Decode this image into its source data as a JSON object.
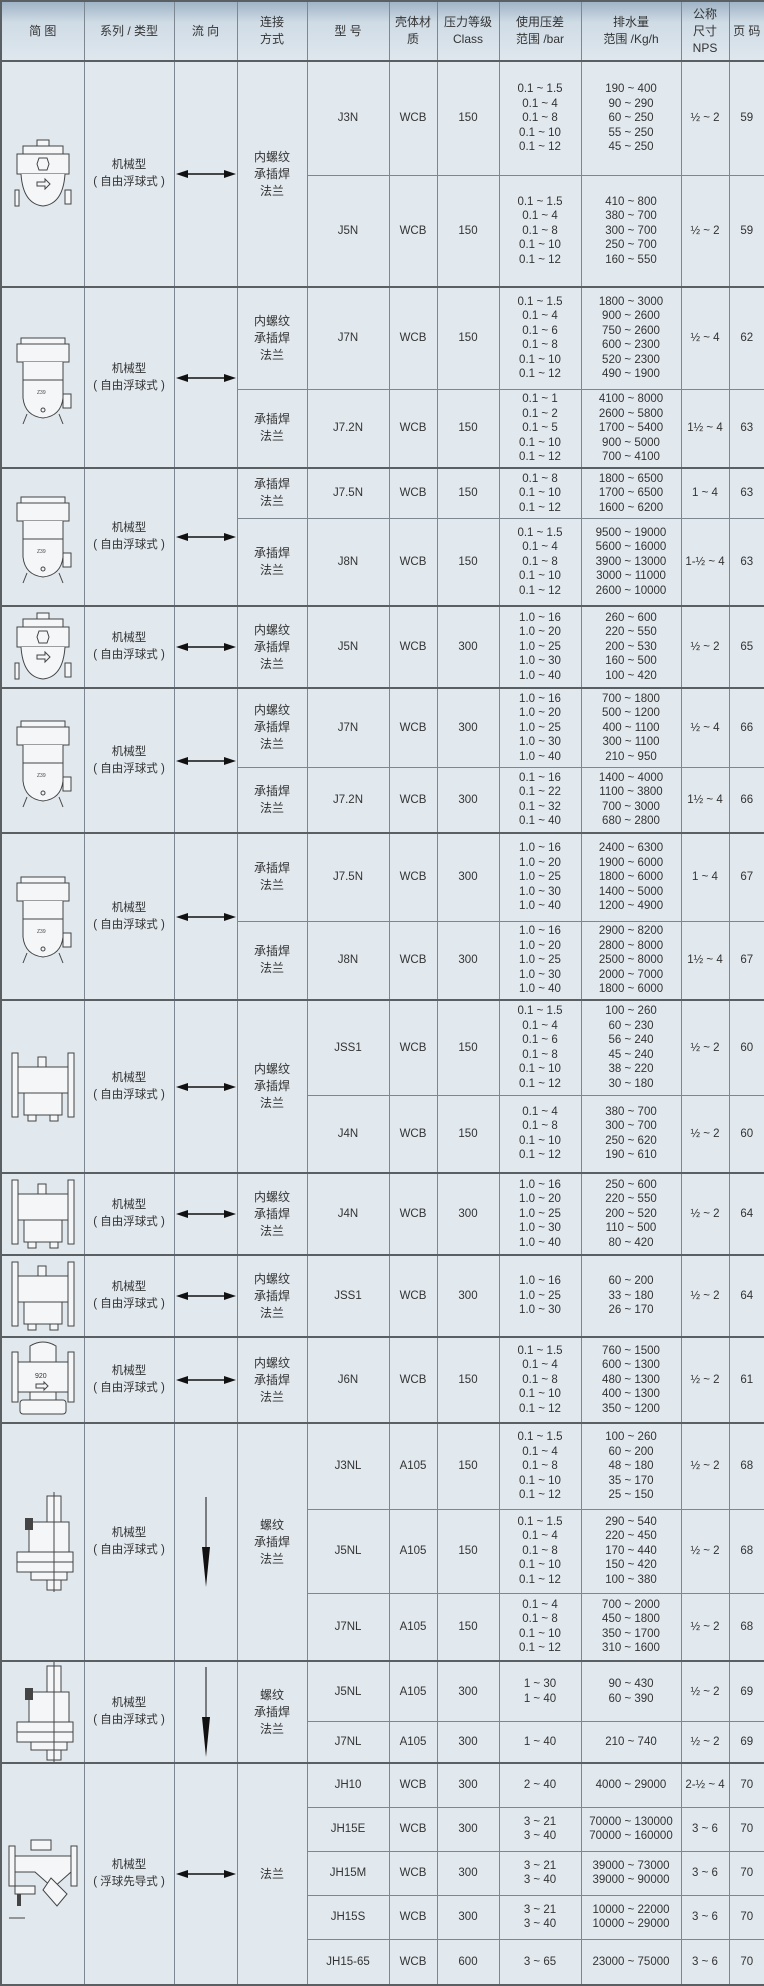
{
  "header": [
    "简 图",
    "系列 / 类型",
    "流 向",
    "连接\n方式",
    "型 号",
    "壳体材\n质",
    "压力等级\nClass",
    "使用压差\n范围 /bar",
    "排水量\n范围 /Kg/h",
    "公称\n尺寸\nNPS",
    "页 码"
  ],
  "colors": {
    "header_top": "#9fb4c6",
    "cell_bg": "#e1e8ee",
    "border": "#5a5f64",
    "text": "#333333"
  },
  "groups": [
    {
      "image": "trap-compact-icon",
      "series": [
        "机械型",
        "( 自由浮球式 )"
      ],
      "flow": "both",
      "connection": "内螺纹\n承插焊\n法兰",
      "rows": [
        {
          "model": "J3N",
          "material": "WCB",
          "class": "150",
          "pressure": [
            "0.1 ~ 1.5",
            "0.1 ~ 4",
            "0.1 ~ 8",
            "0.1 ~ 10",
            "0.1 ~ 12"
          ],
          "capacity": [
            "190 ~ 400",
            "90 ~ 290",
            "60 ~ 250",
            "55 ~ 250",
            "45 ~ 250"
          ],
          "nps": "½ ~ 2",
          "page": "59"
        },
        {
          "model": "J5N",
          "material": "WCB",
          "class": "150",
          "pressure": [
            "0.1 ~ 1.5",
            "0.1 ~ 4",
            "0.1 ~ 8",
            "0.1 ~ 10",
            "0.1 ~ 12"
          ],
          "capacity": [
            "410 ~ 800",
            "380 ~ 700",
            "300 ~ 700",
            "250 ~ 700",
            "160 ~ 550"
          ],
          "nps": "½ ~ 2",
          "page": "59"
        }
      ]
    },
    {
      "image": "trap-tall-icon",
      "series": [
        "机械型",
        "( 自由浮球式 )"
      ],
      "flow": "both",
      "rows": [
        {
          "connection": "内螺纹\n承插焊\n法兰",
          "model": "J7N",
          "material": "WCB",
          "class": "150",
          "pressure": [
            "0.1 ~ 1.5",
            "0.1 ~ 4",
            "0.1 ~ 6",
            "0.1 ~ 8",
            "0.1 ~ 10",
            "0.1 ~ 12"
          ],
          "capacity": [
            "1800 ~ 3000",
            "900 ~ 2600",
            "750 ~ 2600",
            "600 ~ 2300",
            "520 ~ 2300",
            "490 ~ 1900"
          ],
          "nps": "½ ~ 4",
          "page": "62"
        },
        {
          "connection": "承插焊\n法兰",
          "model": "J7.2N",
          "material": "WCB",
          "class": "150",
          "pressure": [
            "0.1 ~ 1",
            "0.1 ~ 2",
            "0.1 ~ 5",
            "0.1 ~ 10",
            "0.1 ~ 12"
          ],
          "capacity": [
            "4100 ~ 8000",
            "2600 ~ 5800",
            "1700 ~ 5400",
            "900 ~ 5000",
            "700 ~ 4100"
          ],
          "nps": "1½ ~ 4",
          "page": "63"
        }
      ]
    },
    {
      "image": "trap-tall-icon",
      "series": [
        "机械型",
        "( 自由浮球式 )"
      ],
      "flow": "both",
      "rows": [
        {
          "connection": "承插焊\n法兰",
          "model": "J7.5N",
          "material": "WCB",
          "class": "150",
          "pressure": [
            "0.1 ~ 8",
            "0.1 ~ 10",
            "0.1 ~ 12"
          ],
          "capacity": [
            "1800 ~ 6500",
            "1700 ~ 6500",
            "1600 ~ 6200"
          ],
          "nps": "1 ~ 4",
          "page": "63"
        },
        {
          "connection": "承插焊\n法兰",
          "model": "J8N",
          "material": "WCB",
          "class": "150",
          "pressure": [
            "0.1 ~ 1.5",
            "0.1 ~ 4",
            "0.1 ~ 8",
            "0.1 ~ 10",
            "0.1 ~ 12"
          ],
          "capacity": [
            "9500 ~ 19000",
            "5600 ~ 16000",
            "3900 ~ 13000",
            "3000 ~ 11000",
            "2600 ~ 10000"
          ],
          "nps": "1-½ ~ 4",
          "page": "63"
        }
      ]
    },
    {
      "image": "trap-compact-icon",
      "series": [
        "机械型",
        "( 自由浮球式 )"
      ],
      "flow": "both",
      "connection": "内螺纹\n承插焊\n法兰",
      "rows": [
        {
          "model": "J5N",
          "material": "WCB",
          "class": "300",
          "pressure": [
            "1.0 ~ 16",
            "1.0 ~ 20",
            "1.0 ~ 25",
            "1.0 ~ 30",
            "1.0 ~ 40"
          ],
          "capacity": [
            "260 ~ 600",
            "220 ~ 550",
            "200 ~ 530",
            "160 ~ 500",
            "100 ~ 420"
          ],
          "nps": "½ ~ 2",
          "page": "65"
        }
      ]
    },
    {
      "image": "trap-tall-icon",
      "series": [
        "机械型",
        "( 自由浮球式 )"
      ],
      "flow": "both",
      "rows": [
        {
          "connection": "内螺纹\n承插焊\n法兰",
          "model": "J7N",
          "material": "WCB",
          "class": "300",
          "pressure": [
            "1.0 ~ 16",
            "1.0 ~ 20",
            "1.0 ~ 25",
            "1.0 ~ 30",
            "1.0 ~ 40"
          ],
          "capacity": [
            "700 ~ 1800",
            "500 ~ 1200",
            "400 ~ 1100",
            "300 ~ 1100",
            "210 ~ 950"
          ],
          "nps": "½ ~ 4",
          "page": "66"
        },
        {
          "connection": "承插焊\n法兰",
          "model": "J7.2N",
          "material": "WCB",
          "class": "300",
          "pressure": [
            "0.1 ~ 16",
            "0.1 ~ 22",
            "0.1 ~ 32",
            "0.1 ~ 40"
          ],
          "capacity": [
            "1400 ~ 4000",
            "1100 ~ 3800",
            "700 ~ 3000",
            "680 ~ 2800"
          ],
          "nps": "1½ ~ 4",
          "page": "66"
        }
      ]
    },
    {
      "image": "trap-tall-icon",
      "series": [
        "机械型",
        "( 自由浮球式 )"
      ],
      "flow": "both",
      "rows": [
        {
          "connection": "承插焊\n法兰",
          "model": "J7.5N",
          "material": "WCB",
          "class": "300",
          "pressure": [
            "1.0 ~ 16",
            "1.0 ~ 20",
            "1.0 ~ 25",
            "1.0 ~ 30",
            "1.0 ~ 40"
          ],
          "capacity": [
            "2400 ~ 6300",
            "1900 ~ 6000",
            "1800 ~ 6000",
            "1400 ~ 5000",
            "1200 ~ 4900"
          ],
          "nps": "1 ~ 4",
          "page": "67"
        },
        {
          "connection": "承插焊\n法兰",
          "model": "J8N",
          "material": "WCB",
          "class": "300",
          "pressure": [
            "1.0 ~ 16",
            "1.0 ~ 20",
            "1.0 ~ 25",
            "1.0 ~ 30",
            "1.0 ~ 40"
          ],
          "capacity": [
            "2900 ~ 8200",
            "2800 ~ 8000",
            "2500 ~ 8000",
            "2000 ~ 7000",
            "1800 ~ 6000"
          ],
          "nps": "1½ ~ 4",
          "page": "67"
        }
      ]
    },
    {
      "image": "trap-flanged-icon",
      "series": [
        "机械型",
        "( 自由浮球式 )"
      ],
      "flow": "both",
      "connection": "内螺纹\n承插焊\n法兰",
      "rows": [
        {
          "model": "JSS1",
          "material": "WCB",
          "class": "150",
          "pressure": [
            "0.1 ~ 1.5",
            "0.1 ~ 4",
            "0.1 ~ 6",
            "0.1 ~ 8",
            "0.1 ~ 10",
            "0.1 ~ 12"
          ],
          "capacity": [
            "100 ~ 260",
            "60 ~ 230",
            "56 ~ 240",
            "45 ~ 240",
            "38 ~ 220",
            "30 ~ 180"
          ],
          "nps": "½ ~ 2",
          "page": "60"
        },
        {
          "model": "J4N",
          "material": "WCB",
          "class": "150",
          "pressure": [
            "0.1 ~ 4",
            "0.1 ~ 8",
            "0.1 ~ 10",
            "0.1 ~ 12"
          ],
          "capacity": [
            "380 ~ 700",
            "300 ~ 700",
            "250 ~ 620",
            "190 ~ 610"
          ],
          "nps": "½ ~ 2",
          "page": "60"
        }
      ]
    },
    {
      "image": "trap-flanged-icon",
      "series": [
        "机械型",
        "( 自由浮球式 )"
      ],
      "flow": "both",
      "connection": "内螺纹\n承插焊\n法兰",
      "rows": [
        {
          "model": "J4N",
          "material": "WCB",
          "class": "300",
          "pressure": [
            "1.0 ~ 16",
            "1.0 ~ 20",
            "1.0 ~ 25",
            "1.0 ~ 30",
            "1.0 ~ 40"
          ],
          "capacity": [
            "250 ~ 600",
            "220 ~ 550",
            "200 ~ 520",
            "110 ~ 500",
            "80 ~ 420"
          ],
          "nps": "½ ~ 2",
          "page": "64"
        }
      ]
    },
    {
      "image": "trap-flanged-icon",
      "series": [
        "机械型",
        "( 自由浮球式 )"
      ],
      "flow": "both",
      "connection": "内螺纹\n承插焊\n法兰",
      "rows": [
        {
          "model": "JSS1",
          "material": "WCB",
          "class": "300",
          "pressure": [
            "1.0 ~ 16",
            "1.0 ~ 25",
            "1.0 ~ 30"
          ],
          "capacity": [
            "60 ~ 200",
            "33 ~ 180",
            "26 ~ 170"
          ],
          "nps": "½ ~ 2",
          "page": "64"
        }
      ]
    },
    {
      "image": "trap-j6n-icon",
      "image_label": "920",
      "series": [
        "机械型",
        "( 自由浮球式 )"
      ],
      "flow": "both",
      "connection": "内螺纹\n承插焊\n法兰",
      "rows": [
        {
          "model": "J6N",
          "material": "WCB",
          "class": "150",
          "pressure": [
            "0.1 ~ 1.5",
            "0.1 ~ 4",
            "0.1 ~ 8",
            "0.1 ~ 10",
            "0.1 ~ 12"
          ],
          "capacity": [
            "760 ~ 1500",
            "600 ~ 1300",
            "480 ~ 1300",
            "400 ~ 1300",
            "350 ~ 1200"
          ],
          "nps": "½ ~ 2",
          "page": "61"
        }
      ]
    },
    {
      "image": "trap-vertical-icon",
      "series": [
        "机械型",
        "( 自由浮球式 )"
      ],
      "flow": "down",
      "connection": "螺纹\n承插焊\n法兰",
      "rows": [
        {
          "model": "J3NL",
          "material": "A105",
          "class": "150",
          "pressure": [
            "0.1 ~ 1.5",
            "0.1 ~ 4",
            "0.1 ~ 8",
            "0.1 ~ 10",
            "0.1 ~ 12"
          ],
          "capacity": [
            "100 ~ 260",
            "60 ~ 200",
            "48 ~ 180",
            "35 ~ 170",
            "25 ~ 150"
          ],
          "nps": "½ ~ 2",
          "page": "68"
        },
        {
          "model": "J5NL",
          "material": "A105",
          "class": "150",
          "pressure": [
            "0.1 ~ 1.5",
            "0.1 ~ 4",
            "0.1 ~ 8",
            "0.1 ~ 10",
            "0.1 ~ 12"
          ],
          "capacity": [
            "290 ~ 540",
            "220 ~ 450",
            "170 ~ 440",
            "150 ~ 420",
            "100 ~ 380"
          ],
          "nps": "½ ~ 2",
          "page": "68"
        },
        {
          "model": "J7NL",
          "material": "A105",
          "class": "150",
          "pressure": [
            "0.1 ~ 4",
            "0.1 ~ 8",
            "0.1 ~ 10",
            "0.1 ~ 12"
          ],
          "capacity": [
            "700 ~ 2000",
            "450 ~ 1800",
            "350 ~ 1700",
            "310 ~ 1600"
          ],
          "nps": "½ ~ 2",
          "page": "68"
        }
      ]
    },
    {
      "image": "trap-vertical-icon",
      "series": [
        "机械型",
        "( 自由浮球式 )"
      ],
      "flow": "down",
      "connection": "螺纹\n承插焊\n法兰",
      "rows": [
        {
          "model": "J5NL",
          "material": "A105",
          "class": "300",
          "pressure": [
            "1 ~ 30",
            "1 ~ 40"
          ],
          "capacity": [
            "90 ~ 430",
            "60 ~ 390"
          ],
          "nps": "½ ~ 2",
          "page": "69"
        },
        {
          "model": "J7NL",
          "material": "A105",
          "class": "300",
          "pressure": [
            "1 ~ 40"
          ],
          "capacity": [
            "210 ~ 740"
          ],
          "nps": "½ ~ 2",
          "page": "69"
        }
      ]
    },
    {
      "image": "trap-pilot-icon",
      "series": [
        "机械型",
        "( 浮球先导式 )"
      ],
      "flow": "both",
      "connection": "法兰",
      "rows": [
        {
          "model": "JH10",
          "material": "WCB",
          "class": "300",
          "pressure": [
            "2 ~ 40"
          ],
          "capacity": [
            "4000 ~ 29000"
          ],
          "nps": "2-½ ~ 4",
          "page": "70"
        },
        {
          "model": "JH15E",
          "material": "WCB",
          "class": "300",
          "pressure": [
            "3 ~ 21",
            "3 ~ 40"
          ],
          "capacity": [
            "70000 ~ 130000",
            "70000 ~ 160000"
          ],
          "nps": "3 ~ 6",
          "page": "70"
        },
        {
          "model": "JH15M",
          "material": "WCB",
          "class": "300",
          "pressure": [
            "3 ~ 21",
            "3 ~ 40"
          ],
          "capacity": [
            "39000 ~ 73000",
            "39000 ~ 90000"
          ],
          "nps": "3 ~ 6",
          "page": "70"
        },
        {
          "model": "JH15S",
          "material": "WCB",
          "class": "300",
          "pressure": [
            "3 ~ 21",
            "3 ~ 40"
          ],
          "capacity": [
            "10000 ~ 22000",
            "10000 ~ 29000"
          ],
          "nps": "3 ~ 6",
          "page": "70"
        },
        {
          "model": "JH15-65",
          "material": "WCB",
          "class": "600",
          "pressure": [
            "3 ~ 65"
          ],
          "capacity": [
            "23000 ~ 75000"
          ],
          "nps": "3 ~ 6",
          "page": "70"
        }
      ]
    }
  ]
}
